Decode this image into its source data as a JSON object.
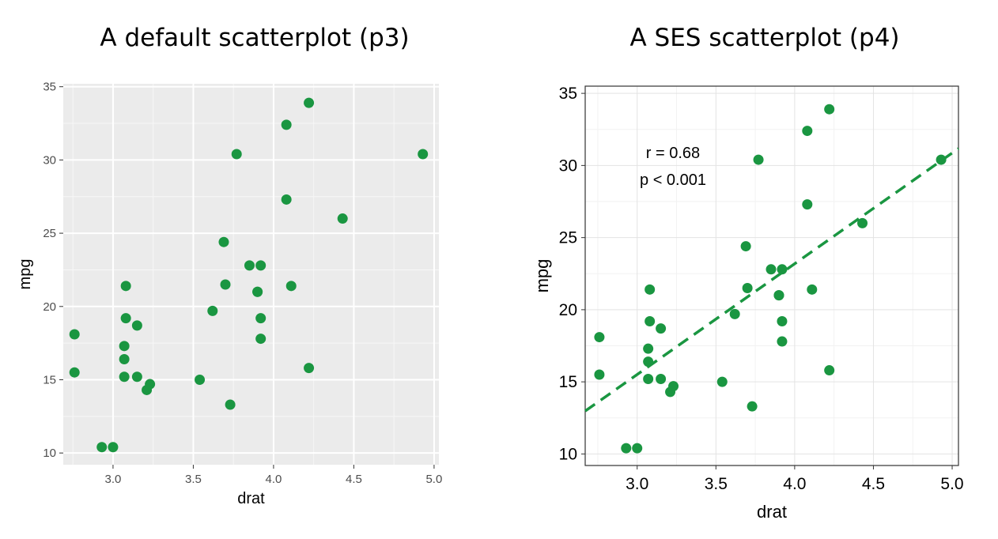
{
  "chart_data": [
    {
      "type": "scatter",
      "title": "A default scatterplot (p3)",
      "xlabel": "drat",
      "ylabel": "mpg",
      "xlim": [
        2.69,
        5.03
      ],
      "ylim": [
        9.2,
        35.2
      ],
      "xticks": [
        3.0,
        3.5,
        4.0,
        4.5,
        5.0
      ],
      "xtick_labels": [
        "3.0",
        "3.5",
        "4.0",
        "4.5",
        "5.0"
      ],
      "yticks": [
        10,
        15,
        20,
        25,
        30,
        35
      ],
      "ytick_labels": [
        "10",
        "15",
        "20",
        "25",
        "30",
        "35"
      ],
      "grid": true,
      "point_color": "#1a9641",
      "x": [
        3.9,
        3.9,
        3.85,
        3.08,
        3.15,
        2.76,
        3.21,
        3.69,
        3.92,
        3.92,
        3.92,
        3.07,
        3.07,
        3.07,
        2.93,
        3.0,
        3.23,
        4.08,
        4.93,
        4.22,
        3.7,
        2.76,
        3.15,
        3.73,
        3.08,
        4.08,
        4.43,
        3.77,
        4.22,
        3.62,
        3.54,
        4.11
      ],
      "y": [
        21.0,
        21.0,
        22.8,
        21.4,
        18.7,
        18.1,
        14.3,
        24.4,
        22.8,
        19.2,
        17.8,
        16.4,
        17.3,
        15.2,
        10.4,
        10.4,
        14.7,
        32.4,
        30.4,
        33.9,
        21.5,
        15.5,
        15.2,
        13.3,
        19.2,
        27.3,
        26.0,
        30.4,
        15.8,
        19.7,
        15.0,
        21.4
      ]
    },
    {
      "type": "scatter",
      "title": "A SES scatterplot (p4)",
      "xlabel": "drat",
      "ylabel": "mpg",
      "xlim": [
        2.67,
        5.04
      ],
      "ylim": [
        9.2,
        35.5
      ],
      "xticks": [
        3.0,
        3.5,
        4.0,
        4.5,
        5.0
      ],
      "xtick_labels": [
        "3.0",
        "3.5",
        "4.0",
        "4.5",
        "5.0"
      ],
      "yticks": [
        10,
        15,
        20,
        25,
        30,
        35
      ],
      "ytick_labels": [
        "10",
        "15",
        "20",
        "25",
        "30",
        "35"
      ],
      "grid": true,
      "point_color": "#1a9641",
      "annotations": [
        "r = 0.68",
        "p < 0.001"
      ],
      "trendline": {
        "style": "dashed",
        "slope": 7.678,
        "intercept": -7.525
      },
      "x": [
        3.9,
        3.9,
        3.85,
        3.08,
        3.15,
        2.76,
        3.21,
        3.69,
        3.92,
        3.92,
        3.92,
        3.07,
        3.07,
        3.07,
        2.93,
        3.0,
        3.23,
        4.08,
        4.93,
        4.22,
        3.7,
        2.76,
        3.15,
        3.73,
        3.08,
        4.08,
        4.43,
        3.77,
        4.22,
        3.62,
        3.54,
        4.11
      ],
      "y": [
        21.0,
        21.0,
        22.8,
        21.4,
        18.7,
        18.1,
        14.3,
        24.4,
        22.8,
        19.2,
        17.8,
        16.4,
        17.3,
        15.2,
        10.4,
        10.4,
        14.7,
        32.4,
        30.4,
        33.9,
        21.5,
        15.5,
        15.2,
        13.3,
        19.2,
        27.3,
        26.0,
        30.4,
        15.8,
        19.7,
        15.0,
        21.4
      ]
    }
  ]
}
